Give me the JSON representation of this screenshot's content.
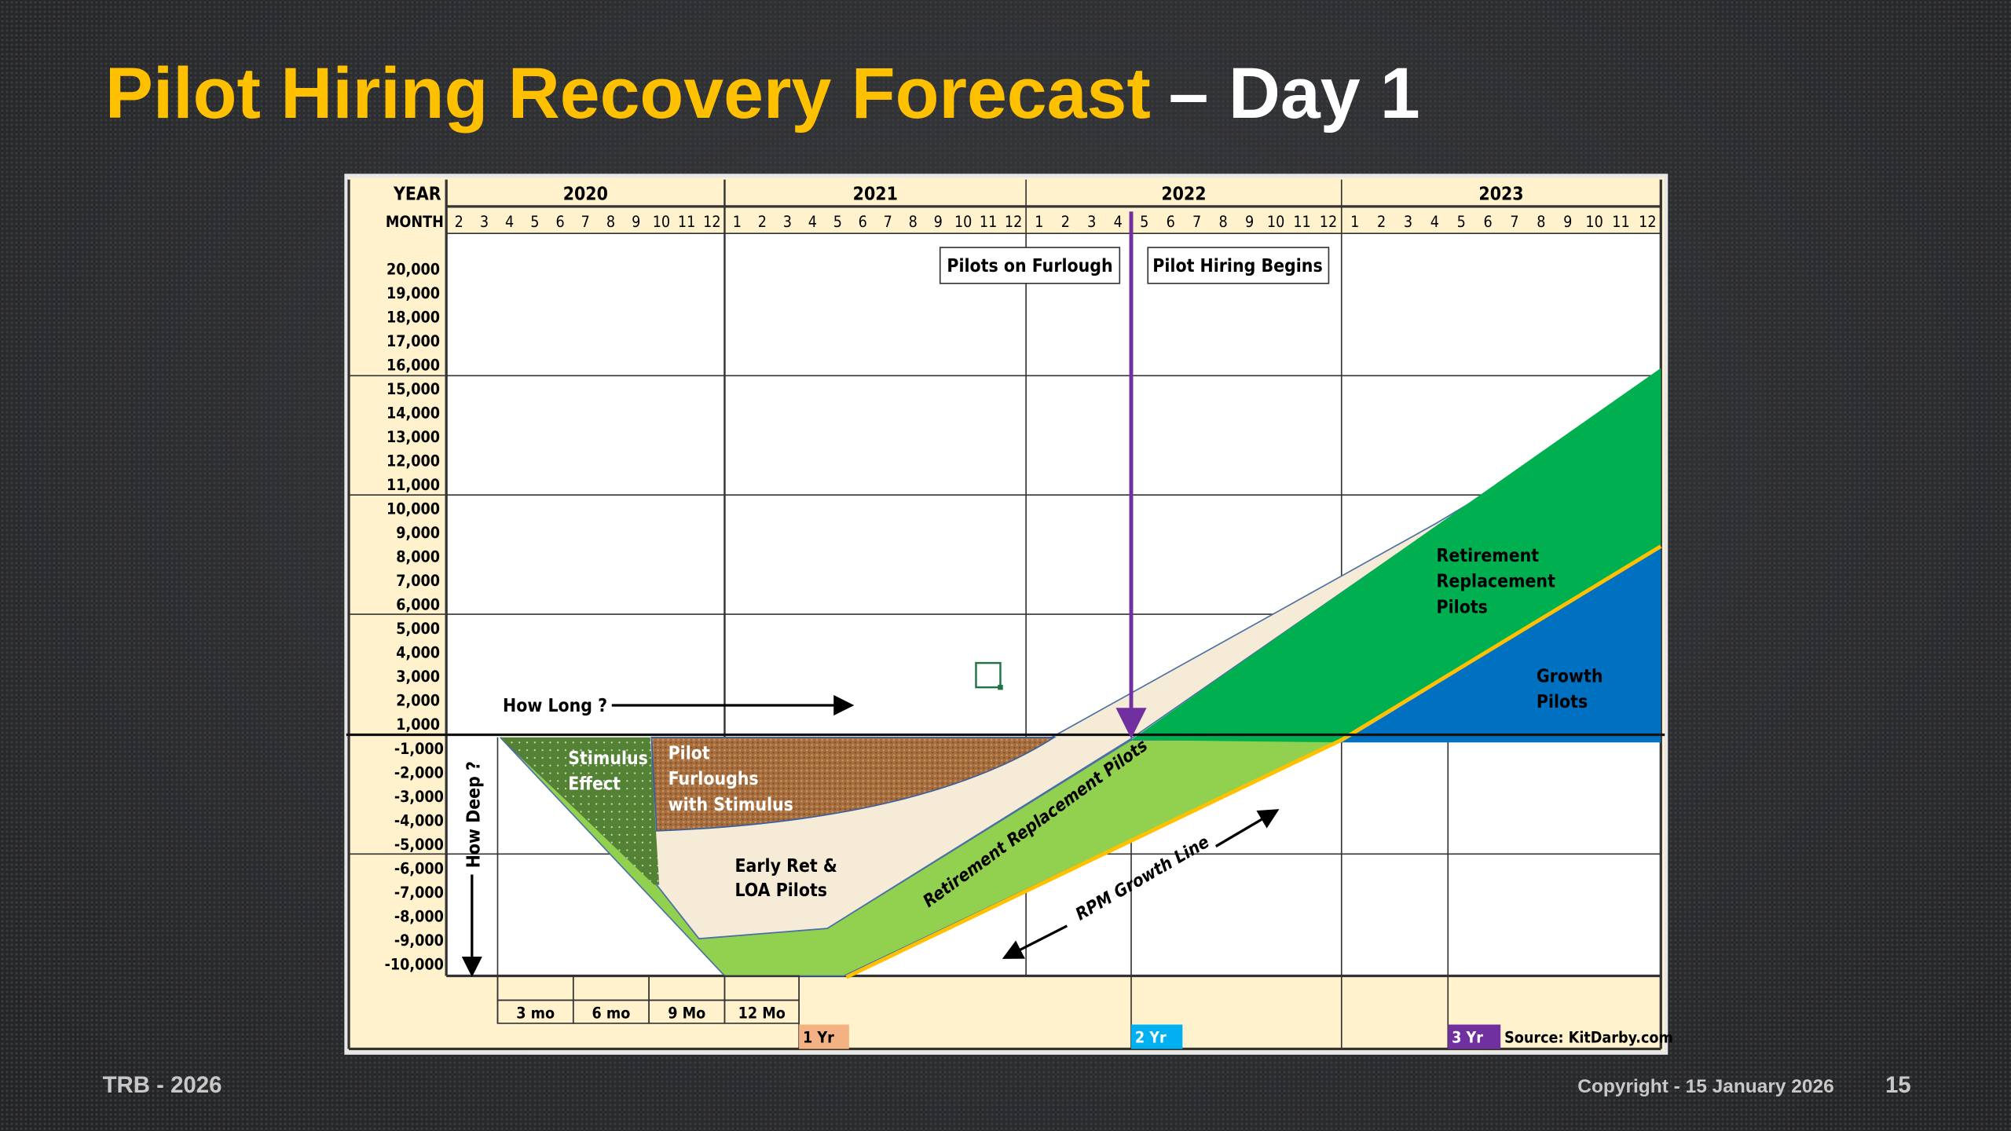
{
  "slide": {
    "title_main": "Pilot Hiring Recovery Forecast",
    "title_suffix": "– Day 1",
    "footer_left": "TRB - 2026",
    "footer_copyright": "Copyright - 15 January 2026",
    "page_number": "15"
  },
  "chart": {
    "year_header": "YEAR",
    "month_header": "MONTH",
    "years": [
      {
        "label": "2020",
        "months": [
          "2",
          "3",
          "4",
          "5",
          "6",
          "7",
          "8",
          "9",
          "10",
          "11",
          "12"
        ]
      },
      {
        "label": "2021",
        "months": [
          "1",
          "2",
          "3",
          "4",
          "5",
          "6",
          "7",
          "8",
          "9",
          "10",
          "11",
          "12"
        ]
      },
      {
        "label": "2022",
        "months": [
          "1",
          "2",
          "3",
          "4",
          "5",
          "6",
          "7",
          "8",
          "9",
          "10",
          "11",
          "12"
        ]
      },
      {
        "label": "2023",
        "months": [
          "1",
          "2",
          "3",
          "4",
          "5",
          "6",
          "7",
          "8",
          "9",
          "10",
          "11",
          "12"
        ]
      }
    ],
    "y_labels_positive": [
      "20,000",
      "19,000",
      "18,000",
      "17,000",
      "16,000",
      "15,000",
      "14,000",
      "13,000",
      "12,000",
      "11,000",
      "10,000",
      "9,000",
      "8,000",
      "7,000",
      "6,000",
      "5,000",
      "4,000",
      "3,000",
      "2,000",
      "1,000"
    ],
    "y_labels_negative": [
      "-1,000",
      "-2,000",
      "-3,000",
      "-4,000",
      "-5,000",
      "-6,000",
      "-7,000",
      "-8,000",
      "-9,000",
      "-10,000"
    ],
    "callouts": {
      "pilots_on_furlough": "Pilots on Furlough",
      "pilot_hiring_begins": "Pilot Hiring Begins",
      "how_long": "How Long ?",
      "how_deep": "How Deep ?",
      "rpm_growth_line": "RPM Growth Line",
      "retirement_replacement_diag": "Retirement Replacement Pilots"
    },
    "areas": {
      "stimulus_1": "Stimulus",
      "stimulus_2": "Effect",
      "furlough_1": "Pilot",
      "furlough_2": "Furloughs",
      "furlough_3": "with Stimulus",
      "early_1": "Early Ret &",
      "early_2": "LOA Pilots",
      "rrp_1": "Retirement",
      "rrp_2": "Replacement",
      "rrp_3": "Pilots",
      "growth_1": "Growth",
      "growth_2": "Pilots"
    },
    "durations": [
      "3 mo",
      "6 mo",
      "9 Mo",
      "12 Mo"
    ],
    "milestones": {
      "y1": "1 Yr",
      "y2": "2 Yr",
      "y3": "3 Yr"
    },
    "source": "Source: KitDarby.com",
    "colors": {
      "header_bg": "#fff2cc",
      "stimulus": "#548235",
      "furlough": "#a0683a",
      "early": "#f6ebd6",
      "retire_band": "#92d050",
      "retire_area": "#00b050",
      "growth": "#0070c0",
      "rpm_line": "#ffc000",
      "hiring_line": "#7030a0",
      "yr1": "#f4b183",
      "yr2": "#00b0f0",
      "yr3": "#7030a0",
      "title": "#ffc000"
    }
  }
}
